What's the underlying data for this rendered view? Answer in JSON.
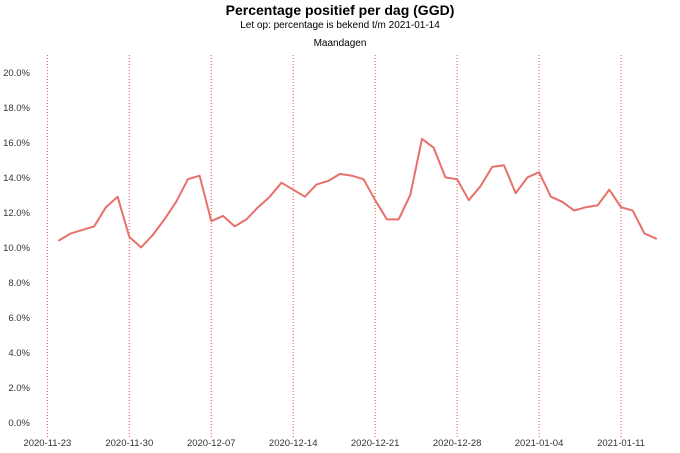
{
  "chart_data": {
    "type": "line",
    "title": "Percentage positief per dag (GGD)",
    "subtitle": "Let op: percentage is bekend t/m 2021-01-14",
    "annotation": "Maandagen",
    "line_color": "#e8706a",
    "monday_line_color": "#e8504a",
    "yticks": [
      "0.0%",
      "2.0%",
      "4.0%",
      "6.0%",
      "8.0%",
      "10.0%",
      "12.0%",
      "14.0%",
      "16.0%",
      "18.0%",
      "20.0%"
    ],
    "ylim": [
      -0.9,
      21.0
    ],
    "xticks": [
      "2020-11-23",
      "2020-11-30",
      "2020-12-07",
      "2020-12-14",
      "2020-12-21",
      "2020-12-28",
      "2021-01-04",
      "2021-01-11"
    ],
    "x": [
      "2020-11-24",
      "2020-11-25",
      "2020-11-26",
      "2020-11-27",
      "2020-11-28",
      "2020-11-29",
      "2020-11-30",
      "2020-12-01",
      "2020-12-02",
      "2020-12-03",
      "2020-12-04",
      "2020-12-05",
      "2020-12-06",
      "2020-12-07",
      "2020-12-08",
      "2020-12-09",
      "2020-12-10",
      "2020-12-11",
      "2020-12-12",
      "2020-12-13",
      "2020-12-14",
      "2020-12-15",
      "2020-12-16",
      "2020-12-17",
      "2020-12-18",
      "2020-12-19",
      "2020-12-20",
      "2020-12-21",
      "2020-12-22",
      "2020-12-23",
      "2020-12-24",
      "2020-12-25",
      "2020-12-26",
      "2020-12-27",
      "2020-12-28",
      "2020-12-29",
      "2020-12-30",
      "2020-12-31",
      "2021-01-01",
      "2021-01-02",
      "2021-01-03",
      "2021-01-04",
      "2021-01-05",
      "2021-01-06",
      "2021-01-07",
      "2021-01-08",
      "2021-01-09",
      "2021-01-10",
      "2021-01-11",
      "2021-01-12",
      "2021-01-13",
      "2021-01-14"
    ],
    "series": [
      {
        "values": [
          10.4,
          10.8,
          11.0,
          11.2,
          12.3,
          12.9,
          10.6,
          10.0,
          10.7,
          11.6,
          12.6,
          13.9,
          14.1,
          11.5,
          11.8,
          11.2,
          11.6,
          12.3,
          12.9,
          13.7,
          13.3,
          12.9,
          13.6,
          13.8,
          14.2,
          14.1,
          13.9,
          12.7,
          11.6,
          11.6,
          13.0,
          16.2,
          15.7,
          14.0,
          13.9,
          12.7,
          13.5,
          14.6,
          14.7,
          13.1,
          14.0,
          14.3,
          12.9,
          12.6,
          12.1,
          12.3,
          12.4,
          13.3,
          12.3,
          12.1,
          10.8,
          10.5
        ]
      }
    ]
  }
}
